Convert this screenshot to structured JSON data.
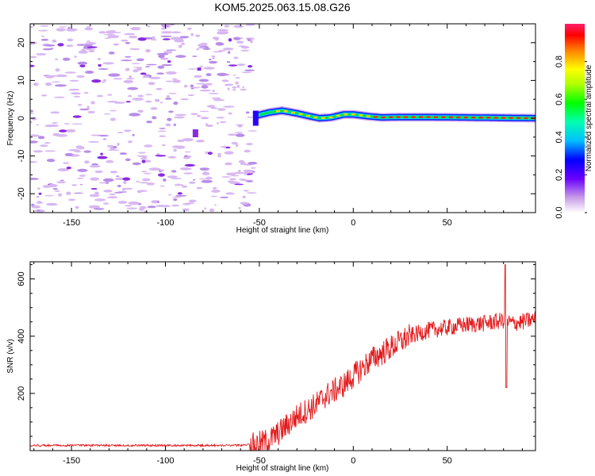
{
  "title": "KOM5.2025.063.15.08.G26",
  "colors": {
    "line": "#e31a1c",
    "noise_light": "#d8b8f2",
    "noise_mid": "#b88de8",
    "noise_dark": "#8a2be2",
    "axis": "#000000"
  },
  "chart_data": [
    {
      "type": "heatmap",
      "title": "KOM5.2025.063.15.08.G26",
      "xlabel": "Height of straight line (km)",
      "ylabel": "Frequency (Hz)",
      "xlim": [
        -172,
        97
      ],
      "ylim": [
        -25,
        25
      ],
      "xticks": [
        -150,
        -100,
        -50,
        0,
        50
      ],
      "xtick_labels": [
        "-150",
        "-100",
        "-50",
        "0",
        "50"
      ],
      "yticks": [
        -20,
        -10,
        0,
        10,
        20
      ],
      "ytick_labels": [
        "-20",
        "-10",
        "0",
        "10",
        "20"
      ],
      "noise_region_x": [
        -172,
        -53
      ],
      "signal_onset_x": -53,
      "ridge": {
        "x": [
          -53,
          -45,
          -38,
          -30,
          -23,
          -18,
          -12,
          -5,
          0,
          8,
          15,
          25,
          40,
          60,
          80,
          97
        ],
        "y": [
          0.5,
          1.5,
          2.0,
          1.3,
          0.5,
          0.0,
          0.2,
          1.0,
          1.0,
          0.5,
          0.2,
          0.3,
          0.3,
          0.2,
          0.1,
          0.0
        ]
      },
      "colorbar": {
        "label": "Normalized spectral amplitude",
        "range": [
          0.0,
          1.0
        ],
        "ticks": [
          0.0,
          0.2,
          0.4,
          0.6,
          0.8
        ],
        "tick_labels": [
          "0.0",
          "0.2",
          "0.4",
          "0.6",
          "0.8"
        ]
      },
      "grid": false,
      "legend": "none"
    },
    {
      "type": "line",
      "xlabel": "Height of straight line (km)",
      "ylabel": "SNR (v/v)",
      "xlim": [
        -172,
        97
      ],
      "ylim": [
        0,
        660
      ],
      "xticks": [
        -150,
        -100,
        -50,
        0,
        50
      ],
      "xtick_labels": [
        "-150",
        "-100",
        "-50",
        "0",
        "50"
      ],
      "yticks": [
        200,
        400,
        600
      ],
      "ytick_labels": [
        "200",
        "400",
        "600"
      ],
      "series": [
        {
          "color": "#e31a1c",
          "x": [
            -172,
            -150,
            -120,
            -100,
            -80,
            -60,
            -52,
            -45,
            -40,
            -35,
            -30,
            -25,
            -20,
            -15,
            -10,
            -5,
            0,
            5,
            10,
            15,
            20,
            25,
            30,
            35,
            40,
            50,
            60,
            70,
            75,
            80,
            85,
            90,
            97
          ],
          "values": [
            15,
            15,
            15,
            15,
            15,
            15,
            20,
            35,
            60,
            90,
            120,
            140,
            160,
            190,
            210,
            230,
            260,
            290,
            320,
            340,
            360,
            380,
            400,
            410,
            420,
            430,
            440,
            445,
            450,
            455,
            445,
            450,
            460
          ]
        }
      ],
      "annotations": {
        "spike_high": {
          "x": 81,
          "y": 650
        },
        "spike_low": {
          "x": 81,
          "y": 220
        }
      },
      "grid": false,
      "legend": "none"
    }
  ]
}
